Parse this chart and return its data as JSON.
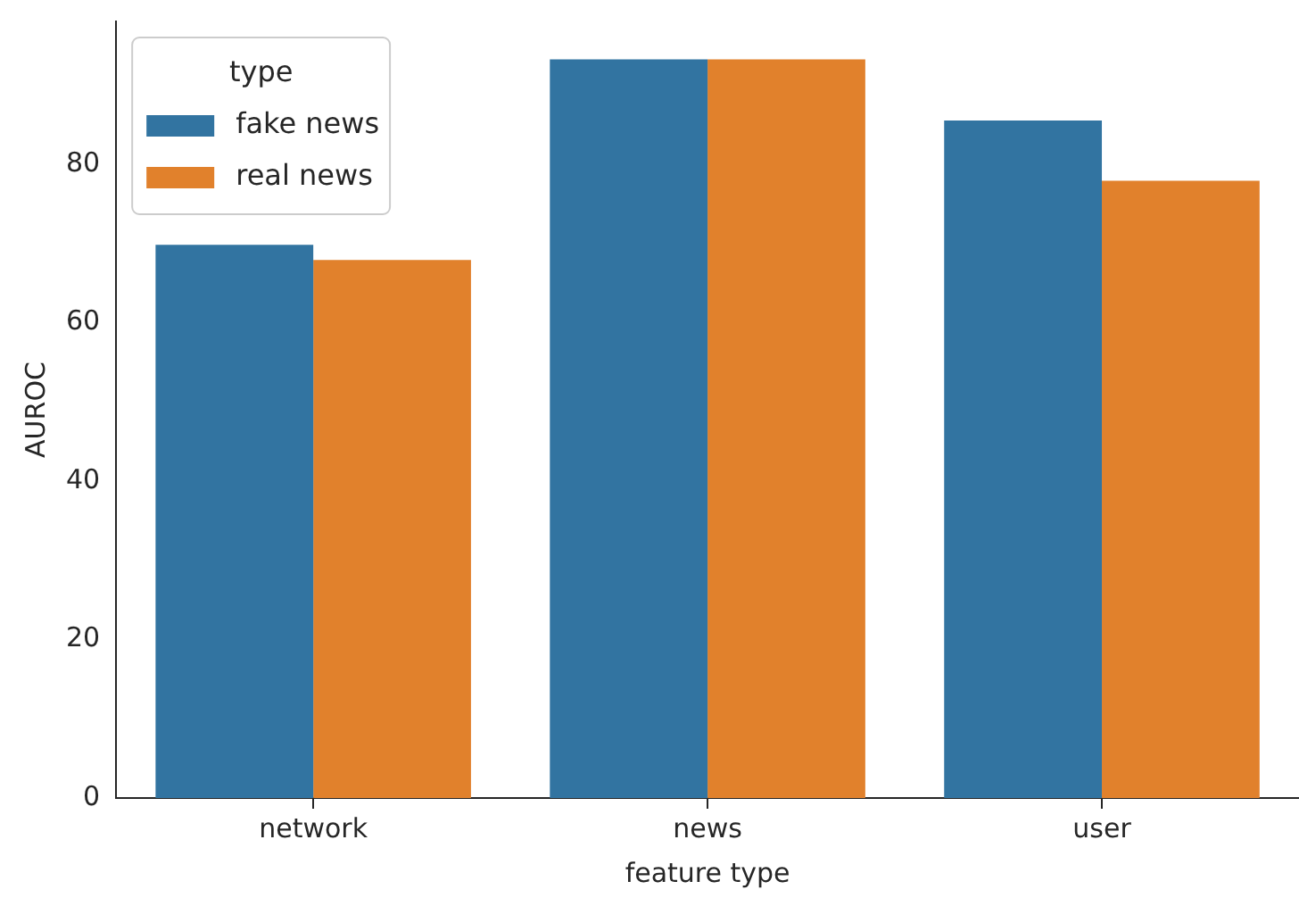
{
  "chart_data": {
    "type": "bar",
    "xlabel": "feature type",
    "ylabel": "AUROC",
    "legend_title": "type",
    "legend": "top left",
    "categories": [
      "network",
      "news",
      "user"
    ],
    "series": [
      {
        "name": "fake news",
        "color": "#3274a1",
        "values": [
          69.8,
          93.2,
          85.5
        ]
      },
      {
        "name": "real news",
        "color": "#e1812c",
        "values": [
          67.9,
          93.2,
          77.9
        ]
      }
    ],
    "ylim": [
      0,
      98
    ],
    "yticks": [
      0,
      20,
      40,
      60,
      80
    ],
    "grid": false
  }
}
